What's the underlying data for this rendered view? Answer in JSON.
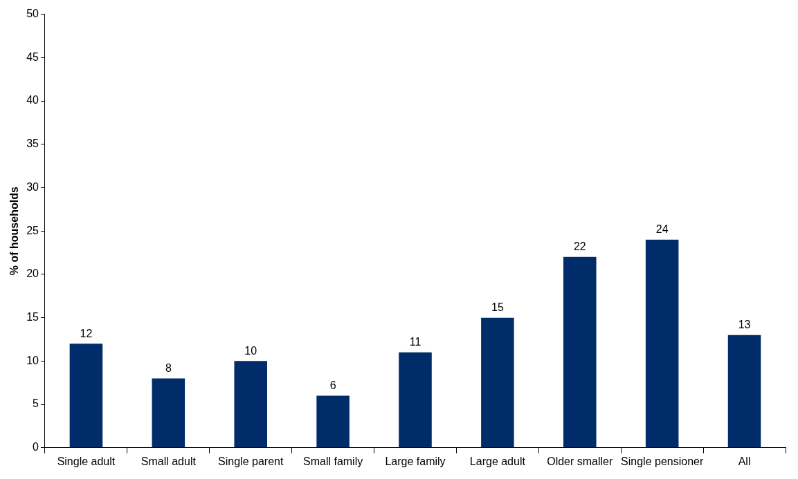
{
  "chart_data": {
    "type": "bar",
    "ylabel": "% of households",
    "categories": [
      "Single adult",
      "Small adult",
      "Single parent",
      "Small family",
      "Large family",
      "Large adult",
      "Older smaller",
      "Single pensioner",
      "All"
    ],
    "values": [
      12,
      8,
      10,
      6,
      11,
      15,
      22,
      24,
      13
    ],
    "color": "#002d6a",
    "ylim": [
      0,
      50
    ],
    "yticks": [
      0,
      5,
      10,
      15,
      20,
      25,
      30,
      35,
      40,
      45,
      50
    ],
    "grid": false,
    "legend": false,
    "data_labels": true
  }
}
